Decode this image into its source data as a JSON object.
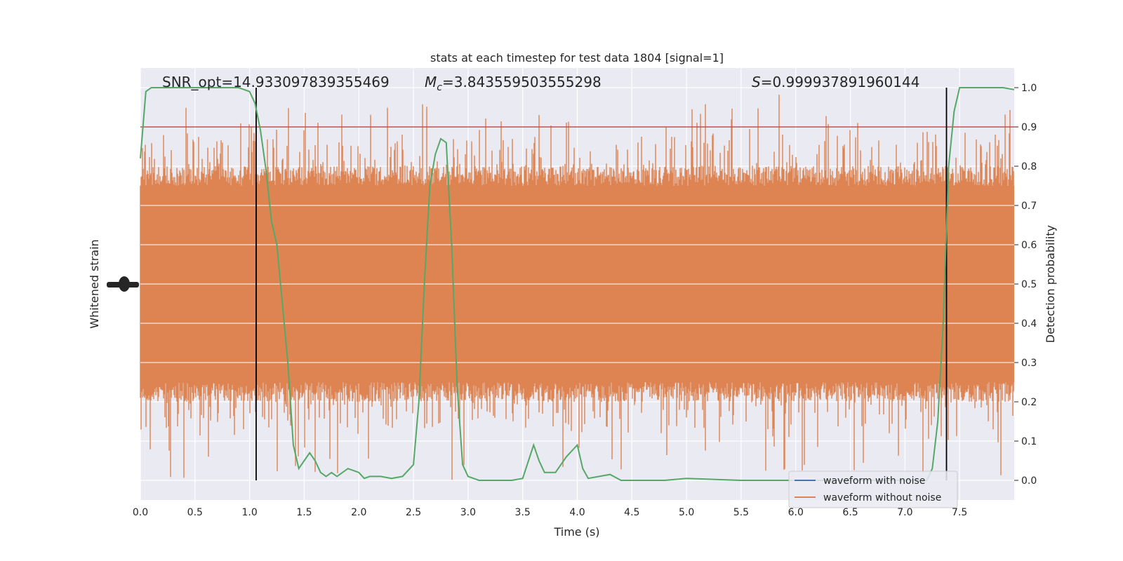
{
  "chart_data": {
    "type": "line",
    "title": "stats at each timestep for test data 1804 [signal=1]",
    "xlabel": "Time (s)",
    "ylabel_left": "Whitened strain",
    "ylabel_right": "Detection probability",
    "xlim": [
      0,
      8
    ],
    "ylim_right": [
      -0.05,
      1.05
    ],
    "x_ticks": [
      "0.0",
      "0.5",
      "1.0",
      "1.5",
      "2.0",
      "2.5",
      "3.0",
      "3.5",
      "4.0",
      "4.5",
      "5.0",
      "5.5",
      "6.0",
      "6.5",
      "7.0",
      "7.5"
    ],
    "y_right_ticks": [
      "0.0",
      "0.1",
      "0.2",
      "0.3",
      "0.4",
      "0.5",
      "0.6",
      "0.7",
      "0.8",
      "0.9",
      "1.0"
    ],
    "grid": true,
    "legend_position": "lower-right",
    "annotations": {
      "snr": "SNR_opt=14.933097839355469",
      "mc_symbol": "M",
      "mc_sub": "c",
      "mc_value": "=3.843559503555298",
      "s_symbol": "S",
      "s_value": "=0.999937891960144"
    },
    "threshold": {
      "value": 0.9,
      "color": "#c44e52"
    },
    "vertical_lines": [
      1.06,
      7.38
    ],
    "series": [
      {
        "name": "waveform with noise",
        "color": "#4c72b0",
        "kind": "strain"
      },
      {
        "name": "waveform without noise",
        "color": "#dd8452",
        "kind": "strain",
        "band_center": 0.5,
        "band_core": [
          0.25,
          0.75
        ],
        "band_max": [
          0.0,
          0.99
        ]
      },
      {
        "color": "#55a868",
        "kind": "probability",
        "x": [
          0.0,
          0.05,
          0.1,
          0.2,
          0.3,
          0.5,
          0.7,
          0.9,
          1.0,
          1.05,
          1.1,
          1.15,
          1.2,
          1.25,
          1.3,
          1.35,
          1.4,
          1.45,
          1.5,
          1.55,
          1.6,
          1.65,
          1.7,
          1.75,
          1.8,
          1.9,
          2.0,
          2.05,
          2.1,
          2.2,
          2.3,
          2.4,
          2.5,
          2.55,
          2.6,
          2.65,
          2.7,
          2.75,
          2.8,
          2.85,
          2.9,
          2.95,
          3.0,
          3.05,
          3.1,
          3.2,
          3.3,
          3.4,
          3.5,
          3.6,
          3.65,
          3.7,
          3.75,
          3.8,
          3.9,
          4.0,
          4.05,
          4.1,
          4.2,
          4.3,
          4.4,
          4.5,
          4.8,
          5.0,
          5.5,
          6.0,
          6.5,
          7.0,
          7.2,
          7.25,
          7.3,
          7.35,
          7.4,
          7.45,
          7.5,
          7.6,
          7.7,
          7.8,
          7.9,
          8.0
        ],
        "y": [
          0.82,
          0.99,
          1.0,
          1.0,
          1.0,
          1.0,
          1.0,
          1.0,
          0.99,
          0.96,
          0.89,
          0.79,
          0.66,
          0.6,
          0.45,
          0.3,
          0.09,
          0.03,
          0.05,
          0.07,
          0.05,
          0.02,
          0.01,
          0.02,
          0.01,
          0.03,
          0.02,
          0.005,
          0.01,
          0.01,
          0.005,
          0.01,
          0.04,
          0.2,
          0.5,
          0.75,
          0.83,
          0.87,
          0.86,
          0.6,
          0.24,
          0.04,
          0.01,
          0.005,
          0.0,
          0.0,
          0.0,
          0.0,
          0.005,
          0.09,
          0.05,
          0.02,
          0.02,
          0.02,
          0.06,
          0.09,
          0.03,
          0.005,
          0.01,
          0.015,
          0.0,
          0.0,
          0.0,
          0.005,
          0.0,
          0.0,
          0.0,
          0.0,
          0.0,
          0.03,
          0.15,
          0.4,
          0.8,
          0.94,
          1.0,
          1.0,
          1.0,
          1.0,
          1.0,
          0.995
        ]
      }
    ]
  }
}
